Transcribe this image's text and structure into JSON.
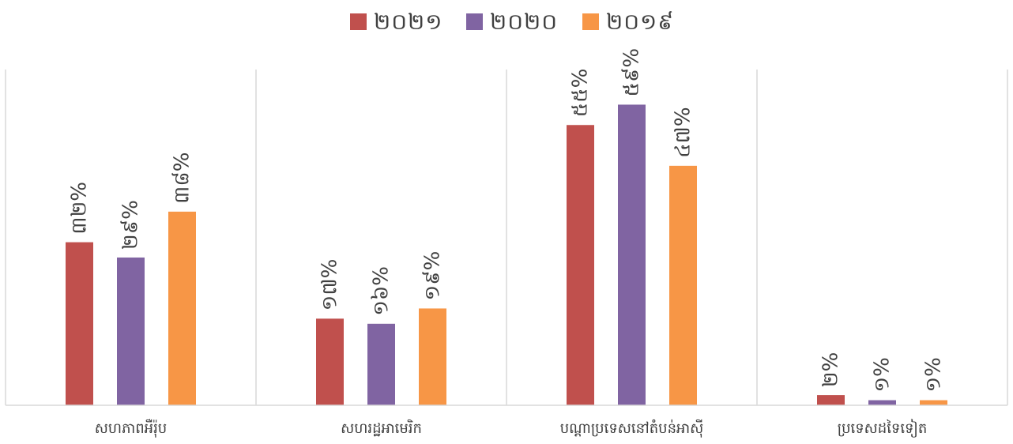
{
  "chart_data": {
    "type": "bar",
    "categories": [
      "សហភាពអឺរ៉ុប",
      "សហរដ្ឋអាមេរិក",
      "បណ្ដាប្រទេសនៅតំបន់អាស៊ី",
      "ប្រទេសដទៃទៀត"
    ],
    "series": [
      {
        "name": "២០២១",
        "color": "#C0504D",
        "values": [
          32,
          17,
          55,
          2
        ],
        "labels": [
          "៣២%",
          "១៧%",
          "៥៥%",
          "២%"
        ]
      },
      {
        "name": "២០២០",
        "color": "#8064A2",
        "values": [
          29,
          16,
          59,
          1
        ],
        "labels": [
          "២៩%",
          "១៦%",
          "៥៩%",
          "១%"
        ]
      },
      {
        "name": "២០១៩",
        "color": "#F79646",
        "values": [
          38,
          19,
          47,
          1
        ],
        "labels": [
          "៣៨%",
          "១៩%",
          "៤៧%",
          "១%"
        ]
      }
    ],
    "ylim": [
      0,
      60
    ],
    "legend_position": "top",
    "grid": false,
    "category_separators": true
  }
}
